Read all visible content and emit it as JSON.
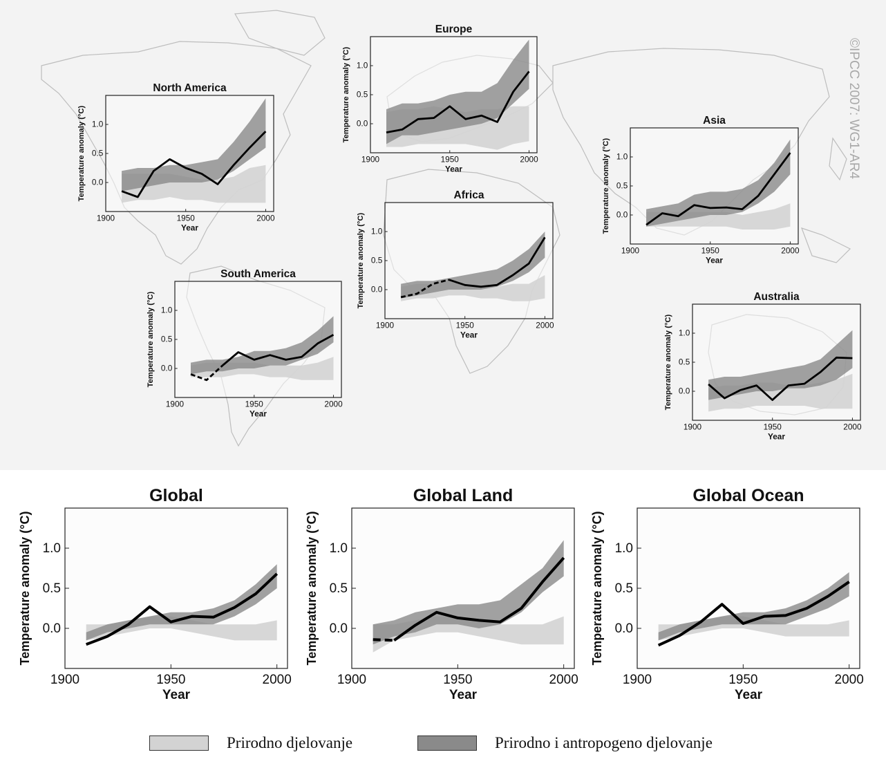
{
  "watermark": "©IPCC 2007: WG1-AR4",
  "colors": {
    "natural": "#d3d3d3",
    "combined": "#8a8a8a",
    "observed": "#000000",
    "map_coast": "#b9b9b9",
    "background": "#f3f3f3"
  },
  "legend": {
    "natural_label": "Prirodno djelovanje",
    "combined_label": "Prirodno i antropogeno djelovanje"
  },
  "chart_data": [
    {
      "id": "north-america",
      "type": "line",
      "title": "North America",
      "xlabel": "Year",
      "ylabel": "Temperature anomaly (°C)",
      "xlim": [
        1900,
        2005
      ],
      "ylim": [
        -0.5,
        1.5
      ],
      "xticks": [
        1900,
        1950,
        2000
      ],
      "yticks": [
        0.0,
        0.5,
        1.0
      ],
      "x": [
        1910,
        1920,
        1930,
        1940,
        1950,
        1960,
        1970,
        1980,
        1990,
        2000
      ],
      "series": [
        {
          "kind": "band-natural",
          "lower": [
            -0.35,
            -0.3,
            -0.3,
            -0.25,
            -0.3,
            -0.3,
            -0.35,
            -0.35,
            -0.35,
            -0.35
          ],
          "upper": [
            0.15,
            0.15,
            0.15,
            0.15,
            0.1,
            0.05,
            0.05,
            0.1,
            0.25,
            0.3
          ]
        },
        {
          "kind": "band-combined",
          "lower": [
            -0.15,
            -0.1,
            -0.05,
            0.0,
            0.0,
            0.0,
            0.05,
            0.2,
            0.4,
            0.6
          ],
          "upper": [
            0.2,
            0.25,
            0.25,
            0.3,
            0.3,
            0.35,
            0.4,
            0.7,
            1.05,
            1.45
          ]
        },
        {
          "kind": "observed",
          "values": [
            -0.15,
            -0.25,
            0.2,
            0.4,
            0.25,
            0.15,
            -0.03,
            0.3,
            0.6,
            0.88
          ],
          "dashed_until": null
        }
      ]
    },
    {
      "id": "europe",
      "type": "line",
      "title": "Europe",
      "xlabel": "Year",
      "ylabel": "Temperature anomaly (°C)",
      "xlim": [
        1900,
        2005
      ],
      "ylim": [
        -0.5,
        1.5
      ],
      "xticks": [
        1900,
        1950,
        2000
      ],
      "yticks": [
        0.0,
        0.5,
        1.0
      ],
      "x": [
        1910,
        1920,
        1930,
        1940,
        1950,
        1960,
        1970,
        1980,
        1990,
        2000
      ],
      "series": [
        {
          "kind": "band-natural",
          "lower": [
            -0.4,
            -0.4,
            -0.35,
            -0.35,
            -0.35,
            -0.35,
            -0.4,
            -0.45,
            -0.35,
            -0.3
          ],
          "upper": [
            0.2,
            0.25,
            0.25,
            0.3,
            0.25,
            0.2,
            0.25,
            0.25,
            0.3,
            0.3
          ]
        },
        {
          "kind": "band-combined",
          "lower": [
            -0.35,
            -0.2,
            -0.2,
            -0.15,
            -0.1,
            -0.05,
            0.0,
            0.1,
            0.35,
            0.6
          ],
          "upper": [
            0.25,
            0.35,
            0.35,
            0.4,
            0.5,
            0.55,
            0.55,
            0.7,
            1.1,
            1.45
          ]
        },
        {
          "kind": "observed",
          "values": [
            -0.15,
            -0.1,
            0.08,
            0.1,
            0.3,
            0.08,
            0.14,
            0.03,
            0.55,
            0.9
          ],
          "dashed_until": null
        }
      ]
    },
    {
      "id": "asia",
      "type": "line",
      "title": "Asia",
      "xlabel": "Year",
      "ylabel": "Temperature anomaly (°C)",
      "xlim": [
        1900,
        2005
      ],
      "ylim": [
        -0.5,
        1.5
      ],
      "xticks": [
        1900,
        1950,
        2000
      ],
      "yticks": [
        0.0,
        0.5,
        1.0
      ],
      "x": [
        1910,
        1920,
        1930,
        1940,
        1950,
        1960,
        1970,
        1980,
        1990,
        2000
      ],
      "series": [
        {
          "kind": "band-natural",
          "lower": [
            -0.2,
            -0.2,
            -0.2,
            -0.2,
            -0.2,
            -0.2,
            -0.25,
            -0.25,
            -0.25,
            -0.2
          ],
          "upper": [
            0.05,
            0.05,
            0.05,
            0.05,
            0.05,
            0.05,
            0.0,
            0.05,
            0.1,
            0.2
          ]
        },
        {
          "kind": "band-combined",
          "lower": [
            -0.2,
            -0.15,
            -0.1,
            -0.05,
            0.0,
            0.0,
            0.05,
            0.2,
            0.4,
            0.7
          ],
          "upper": [
            0.1,
            0.15,
            0.2,
            0.35,
            0.4,
            0.4,
            0.45,
            0.6,
            0.9,
            1.3
          ]
        },
        {
          "kind": "observed",
          "values": [
            -0.17,
            0.03,
            -0.02,
            0.17,
            0.12,
            0.13,
            0.1,
            0.33,
            0.7,
            1.07
          ],
          "dashed_until": null
        }
      ]
    },
    {
      "id": "africa",
      "type": "line",
      "title": "Africa",
      "xlabel": "Year",
      "ylabel": "Temperature anomaly (°C)",
      "xlim": [
        1900,
        2005
      ],
      "ylim": [
        -0.5,
        1.5
      ],
      "xticks": [
        1900,
        1950,
        2000
      ],
      "yticks": [
        0.0,
        0.5,
        1.0
      ],
      "x": [
        1910,
        1920,
        1930,
        1940,
        1950,
        1960,
        1970,
        1980,
        1990,
        2000
      ],
      "series": [
        {
          "kind": "band-natural",
          "lower": [
            -0.2,
            -0.15,
            -0.15,
            -0.1,
            -0.1,
            -0.15,
            -0.15,
            -0.2,
            -0.2,
            -0.15
          ],
          "upper": [
            0.05,
            0.1,
            0.1,
            0.15,
            0.1,
            0.05,
            0.05,
            0.1,
            0.1,
            0.25
          ]
        },
        {
          "kind": "band-combined",
          "lower": [
            -0.15,
            -0.1,
            -0.05,
            0.0,
            0.0,
            0.0,
            0.05,
            0.15,
            0.3,
            0.55
          ],
          "upper": [
            0.1,
            0.15,
            0.15,
            0.2,
            0.25,
            0.3,
            0.35,
            0.5,
            0.7,
            1.0
          ]
        },
        {
          "kind": "observed",
          "values": [
            -0.13,
            -0.07,
            0.1,
            0.17,
            0.08,
            0.05,
            0.08,
            0.25,
            0.45,
            0.9
          ],
          "dashed_until": 1940
        }
      ]
    },
    {
      "id": "south-america",
      "type": "line",
      "title": "South America",
      "xlabel": "Year",
      "ylabel": "Temperature anomaly (°C)",
      "xlim": [
        1900,
        2005
      ],
      "ylim": [
        -0.5,
        1.5
      ],
      "xticks": [
        1900,
        1950,
        2000
      ],
      "yticks": [
        0.0,
        0.5,
        1.0
      ],
      "x": [
        1910,
        1920,
        1930,
        1940,
        1950,
        1960,
        1970,
        1980,
        1990,
        2000
      ],
      "series": [
        {
          "kind": "band-natural",
          "lower": [
            -0.15,
            -0.15,
            -0.15,
            -0.1,
            -0.1,
            -0.15,
            -0.15,
            -0.2,
            -0.2,
            -0.2
          ],
          "upper": [
            0.05,
            0.1,
            0.1,
            0.1,
            0.1,
            0.05,
            0.05,
            0.05,
            0.1,
            0.2
          ]
        },
        {
          "kind": "band-combined",
          "lower": [
            -0.1,
            -0.05,
            -0.05,
            0.0,
            0.0,
            0.05,
            0.05,
            0.15,
            0.25,
            0.45
          ],
          "upper": [
            0.1,
            0.15,
            0.15,
            0.2,
            0.3,
            0.3,
            0.35,
            0.45,
            0.65,
            0.9
          ]
        },
        {
          "kind": "observed",
          "values": [
            -0.1,
            -0.2,
            0.05,
            0.28,
            0.15,
            0.23,
            0.15,
            0.2,
            0.43,
            0.58
          ],
          "dashed_until": 1930
        }
      ]
    },
    {
      "id": "australia",
      "type": "line",
      "title": "Australia",
      "xlabel": "Year",
      "ylabel": "Temperature anomaly (°C)",
      "xlim": [
        1900,
        2005
      ],
      "ylim": [
        -0.5,
        1.5
      ],
      "xticks": [
        1900,
        1950,
        2000
      ],
      "yticks": [
        0.0,
        0.5,
        1.0
      ],
      "x": [
        1910,
        1920,
        1930,
        1940,
        1950,
        1960,
        1970,
        1980,
        1990,
        2000
      ],
      "series": [
        {
          "kind": "band-natural",
          "lower": [
            -0.35,
            -0.3,
            -0.3,
            -0.25,
            -0.25,
            -0.25,
            -0.25,
            -0.3,
            -0.3,
            -0.3
          ],
          "upper": [
            0.05,
            0.1,
            0.1,
            0.15,
            0.15,
            0.1,
            0.1,
            0.15,
            0.2,
            0.3
          ]
        },
        {
          "kind": "band-combined",
          "lower": [
            -0.15,
            -0.1,
            -0.05,
            0.0,
            0.0,
            0.05,
            0.05,
            0.1,
            0.2,
            0.4
          ],
          "upper": [
            0.2,
            0.25,
            0.25,
            0.3,
            0.35,
            0.4,
            0.45,
            0.55,
            0.8,
            1.05
          ]
        },
        {
          "kind": "observed",
          "values": [
            0.12,
            -0.12,
            0.02,
            0.1,
            -0.15,
            0.1,
            0.13,
            0.33,
            0.58,
            0.57
          ],
          "dashed_until": null
        }
      ]
    },
    {
      "id": "global",
      "type": "line",
      "title": "Global",
      "xlabel": "Year",
      "ylabel": "Temperature anomaly (°C)",
      "xlim": [
        1900,
        2005
      ],
      "ylim": [
        -0.5,
        1.5
      ],
      "xticks": [
        1900,
        1950,
        2000
      ],
      "yticks": [
        0.0,
        0.5,
        1.0
      ],
      "x": [
        1910,
        1920,
        1930,
        1940,
        1950,
        1960,
        1970,
        1980,
        1990,
        2000
      ],
      "series": [
        {
          "kind": "band-natural",
          "lower": [
            -0.15,
            -0.1,
            -0.05,
            0.0,
            0.0,
            -0.05,
            -0.1,
            -0.15,
            -0.15,
            -0.15
          ],
          "upper": [
            0.05,
            0.05,
            0.1,
            0.15,
            0.15,
            0.1,
            0.05,
            0.05,
            0.05,
            0.1
          ]
        },
        {
          "kind": "band-combined",
          "lower": [
            -0.15,
            -0.05,
            0.0,
            0.05,
            0.05,
            0.05,
            0.05,
            0.15,
            0.3,
            0.5
          ],
          "upper": [
            -0.05,
            0.05,
            0.1,
            0.15,
            0.2,
            0.2,
            0.25,
            0.35,
            0.55,
            0.8
          ]
        },
        {
          "kind": "observed",
          "values": [
            -0.2,
            -0.1,
            0.05,
            0.27,
            0.08,
            0.15,
            0.14,
            0.26,
            0.43,
            0.68
          ],
          "dashed_until": null
        }
      ]
    },
    {
      "id": "global-land",
      "type": "line",
      "title": "Global Land",
      "xlabel": "Year",
      "ylabel": "Temperature anomaly (°C)",
      "xlim": [
        1900,
        2005
      ],
      "ylim": [
        -0.5,
        1.5
      ],
      "xticks": [
        1900,
        1950,
        2000
      ],
      "yticks": [
        0.0,
        0.5,
        1.0
      ],
      "x": [
        1910,
        1920,
        1930,
        1940,
        1950,
        1960,
        1970,
        1980,
        1990,
        2000
      ],
      "series": [
        {
          "kind": "band-natural",
          "lower": [
            -0.3,
            -0.15,
            -0.1,
            -0.05,
            -0.05,
            -0.1,
            -0.15,
            -0.2,
            -0.2,
            -0.2
          ],
          "upper": [
            0.05,
            0.05,
            0.1,
            0.15,
            0.15,
            0.1,
            0.05,
            0.05,
            0.05,
            0.15
          ]
        },
        {
          "kind": "band-combined",
          "lower": [
            -0.2,
            -0.1,
            -0.05,
            0.05,
            0.05,
            0.0,
            0.05,
            0.2,
            0.45,
            0.65
          ],
          "upper": [
            0.05,
            0.1,
            0.2,
            0.25,
            0.3,
            0.3,
            0.35,
            0.55,
            0.75,
            1.1
          ]
        },
        {
          "kind": "observed",
          "values": [
            -0.14,
            -0.15,
            0.04,
            0.2,
            0.13,
            0.1,
            0.08,
            0.25,
            0.58,
            0.88
          ],
          "dashed_until": 1920
        }
      ]
    },
    {
      "id": "global-ocean",
      "type": "line",
      "title": "Global Ocean",
      "xlabel": "Year",
      "ylabel": "Temperature anomaly (°C)",
      "xlim": [
        1900,
        2005
      ],
      "ylim": [
        -0.5,
        1.5
      ],
      "xticks": [
        1900,
        1950,
        2000
      ],
      "yticks": [
        0.0,
        0.5,
        1.0
      ],
      "x": [
        1910,
        1920,
        1930,
        1940,
        1950,
        1960,
        1970,
        1980,
        1990,
        2000
      ],
      "series": [
        {
          "kind": "band-natural",
          "lower": [
            -0.15,
            -0.1,
            -0.05,
            0.0,
            0.0,
            -0.05,
            -0.1,
            -0.1,
            -0.1,
            -0.1
          ],
          "upper": [
            0.05,
            0.05,
            0.1,
            0.15,
            0.15,
            0.1,
            0.05,
            0.05,
            0.05,
            0.1
          ]
        },
        {
          "kind": "band-combined",
          "lower": [
            -0.15,
            -0.05,
            0.0,
            0.05,
            0.05,
            0.05,
            0.05,
            0.15,
            0.25,
            0.4
          ],
          "upper": [
            -0.05,
            0.05,
            0.1,
            0.15,
            0.2,
            0.2,
            0.25,
            0.35,
            0.5,
            0.7
          ]
        },
        {
          "kind": "observed",
          "values": [
            -0.21,
            -0.09,
            0.08,
            0.3,
            0.06,
            0.15,
            0.16,
            0.25,
            0.4,
            0.58
          ],
          "dashed_until": null
        }
      ]
    }
  ]
}
